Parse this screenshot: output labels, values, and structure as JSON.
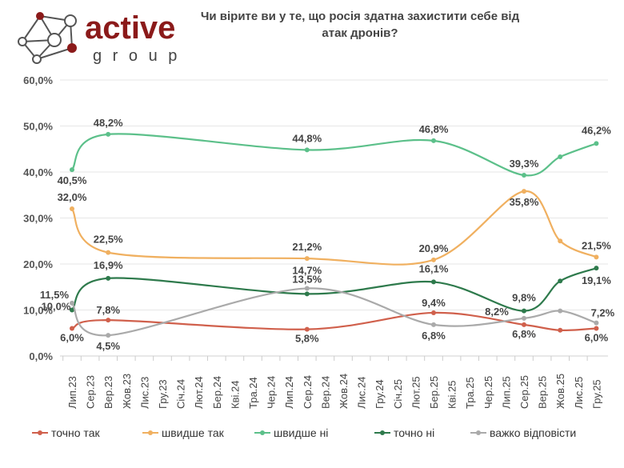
{
  "title": "Чи вірите ви у те, що росія здатна захистити себе від атак дронів?",
  "logo": {
    "word1": "active",
    "word2": "g r o u p",
    "accent": "#8b1a1a"
  },
  "chart_data": {
    "type": "line",
    "title": "Чи вірите ви у те, що росія здатна захистити себе від атак дронів?",
    "categories": [
      "Лип.23",
      "Сер.23",
      "Вер.23",
      "Жов.23",
      "Лис.23",
      "Гру.23",
      "Січ.24",
      "Лют.24",
      "Бер.24",
      "Кві.24",
      "Тра.24",
      "Чер.24",
      "Лип.24",
      "Сер.24",
      "Вер.24",
      "Жов.24",
      "Лис.24",
      "Гру.24",
      "Січ.25",
      "Лют.25",
      "Бер.25",
      "Кві.25",
      "Тра.25",
      "Чер.25",
      "Лип.25",
      "Сер.25",
      "Вер.25",
      "Жов.25",
      "Лис.25",
      "Гру.25"
    ],
    "x": [
      "Лип.23",
      "Вер.23",
      "Сер.24",
      "Бер.25",
      "Сер.25",
      "Жов.25",
      "Гру.25"
    ],
    "ylim": [
      0,
      60
    ],
    "yticks": [
      "0,0%",
      "10,0%",
      "20,0%",
      "30,0%",
      "40,0%",
      "50,0%",
      "60,0%"
    ],
    "grid": true,
    "legend_position": "bottom",
    "series": [
      {
        "name": "точно так",
        "color": "#d0604c",
        "values": [
          6.0,
          7.8,
          5.8,
          9.4,
          6.8,
          5.6,
          6.0
        ],
        "labels": [
          "6,0%",
          "7,8%",
          "5,8%",
          "9,4%",
          "6,8%",
          null,
          "6,0%"
        ]
      },
      {
        "name": "швидше так",
        "color": "#f0b060",
        "values": [
          32.0,
          22.5,
          21.2,
          20.9,
          35.8,
          25.0,
          21.5
        ],
        "labels": [
          "32,0%",
          "22,5%",
          "21,2%",
          "20,9%",
          "35,8%",
          null,
          "21,5%"
        ]
      },
      {
        "name": "швидше ні",
        "color": "#5cc08a",
        "values": [
          40.5,
          48.2,
          44.8,
          46.8,
          39.3,
          43.3,
          46.2
        ],
        "labels": [
          "40,5%",
          "48,2%",
          "44,8%",
          "46,8%",
          "39,3%",
          null,
          "46,2%"
        ]
      },
      {
        "name": "точно ні",
        "color": "#2e7a4c",
        "values": [
          10.0,
          16.9,
          13.5,
          16.1,
          9.8,
          16.3,
          19.1
        ],
        "labels": [
          "10,0%",
          "16,9%",
          "13,5%",
          "16,1%",
          "9,8%",
          null,
          "19,1%"
        ]
      },
      {
        "name": "важко відповісти",
        "color": "#aaaaaa",
        "values": [
          11.5,
          4.5,
          14.7,
          6.8,
          8.2,
          9.8,
          7.2
        ],
        "labels": [
          "11,5%",
          "4,5%",
          "14,7%",
          "6,8%",
          "8,2%",
          null,
          "7,2%"
        ]
      }
    ]
  }
}
